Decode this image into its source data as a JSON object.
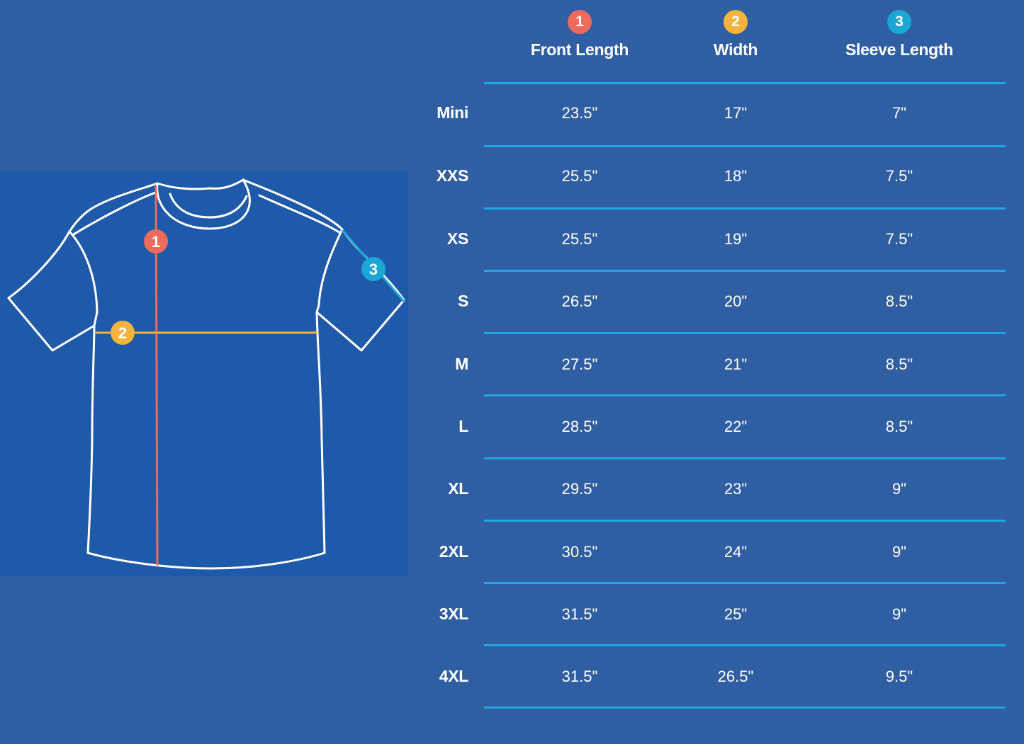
{
  "colors": {
    "background": "#2f5fa2",
    "panel": "#1e5aa9",
    "divider": "#1ea8df",
    "front_length": "#ed6b5c",
    "width": "#f6b33c",
    "sleeve_length": "#1aa7d6"
  },
  "diagram": {
    "markers": [
      {
        "label": "1",
        "color": "#ed6b5c"
      },
      {
        "label": "2",
        "color": "#f6b33c"
      },
      {
        "label": "3",
        "color": "#1aa7d6"
      }
    ]
  },
  "table": {
    "columns": [
      {
        "number": "1",
        "title": "Front Length",
        "color": "#ed6b5c"
      },
      {
        "number": "2",
        "title": "Width",
        "color": "#f6b33c"
      },
      {
        "number": "3",
        "title": "Sleeve Length",
        "color": "#1aa7d6"
      }
    ],
    "rows": [
      {
        "size": "Mini",
        "values": [
          "23.5\"",
          "17\"",
          "7\""
        ]
      },
      {
        "size": "XXS",
        "values": [
          "25.5\"",
          "18\"",
          "7.5\""
        ]
      },
      {
        "size": "XS",
        "values": [
          "25.5\"",
          "19\"",
          "7.5\""
        ]
      },
      {
        "size": "S",
        "values": [
          "26.5\"",
          "20\"",
          "8.5\""
        ]
      },
      {
        "size": "M",
        "values": [
          "27.5\"",
          "21\"",
          "8.5\""
        ]
      },
      {
        "size": "L",
        "values": [
          "28.5\"",
          "22\"",
          "8.5\""
        ]
      },
      {
        "size": "XL",
        "values": [
          "29.5\"",
          "23\"",
          "9\""
        ]
      },
      {
        "size": "2XL",
        "values": [
          "30.5\"",
          "24\"",
          "9\""
        ]
      },
      {
        "size": "3XL",
        "values": [
          "31.5\"",
          "25\"",
          "9\""
        ]
      },
      {
        "size": "4XL",
        "values": [
          "31.5\"",
          "26.5\"",
          "9.5\""
        ]
      }
    ]
  }
}
